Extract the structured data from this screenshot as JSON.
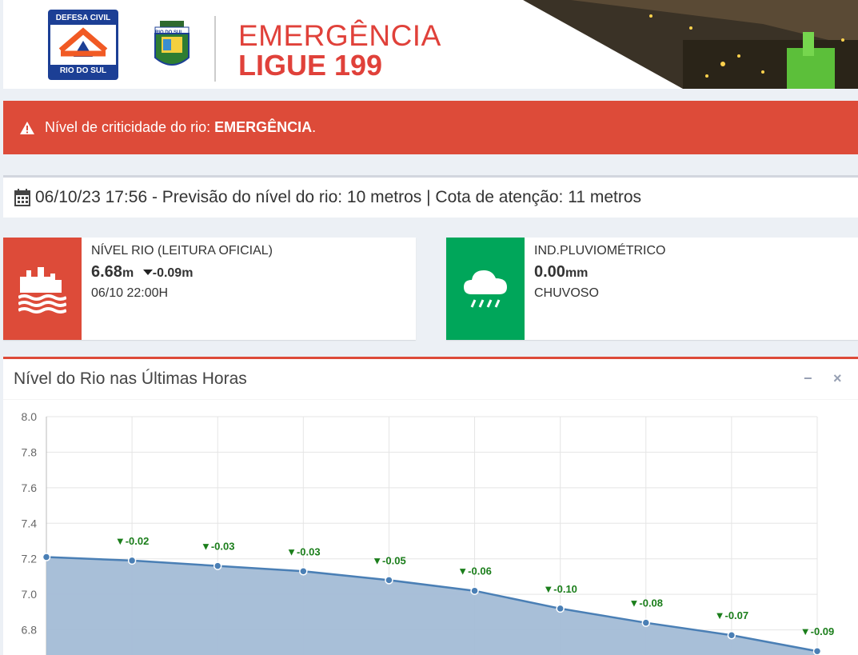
{
  "header": {
    "defesa_top": "DEFESA CIVIL",
    "defesa_bottom": "RIO DO SUL",
    "crest_text": "RIO DO SUL",
    "emergencia": "EMERGÊNCIA",
    "ligue": "LIGUE 199"
  },
  "alert": {
    "prefix": "Nível de criticidade do rio: ",
    "level": "EMERGÊNCIA",
    "suffix": "."
  },
  "info": {
    "text": "06/10/23 17:56 - Previsão do nível do rio: 10 metros | Cota de atenção: 11 metros"
  },
  "boxes": {
    "river": {
      "label": "NÍVEL RIO (LEITURA OFICIAL)",
      "value": "6.68",
      "unit": "m",
      "delta": "-0.09m",
      "time": "06/10 22:00H"
    },
    "rain": {
      "label": "IND.PLUVIOMÉTRICO",
      "value": "0.00",
      "unit": "mm",
      "status": "CHUVOSO"
    }
  },
  "panel": {
    "title": "Nível do Rio nas Últimas Horas",
    "minimize": "−",
    "close": "×"
  },
  "colors": {
    "danger": "#dd4b39",
    "success": "#00a65a",
    "area_fill": "#a3bcd6",
    "line": "#4a7fb5",
    "delta_green": "#1b7e1b"
  },
  "chart_data": {
    "type": "area",
    "ylim": [
      6.6,
      8.0
    ],
    "yticks": [
      "8.0",
      "7.8",
      "7.6",
      "7.4",
      "7.2",
      "7.0",
      "6.8"
    ],
    "values": [
      7.21,
      7.19,
      7.16,
      7.13,
      7.08,
      7.02,
      6.92,
      6.84,
      6.77,
      6.68
    ],
    "labels": [
      "",
      "▼-0.02",
      "▼-0.03",
      "▼-0.03",
      "▼-0.05",
      "▼-0.06",
      "▼-0.10",
      "▼-0.08",
      "▼-0.07",
      "▼-0.09"
    ],
    "grid": true
  }
}
